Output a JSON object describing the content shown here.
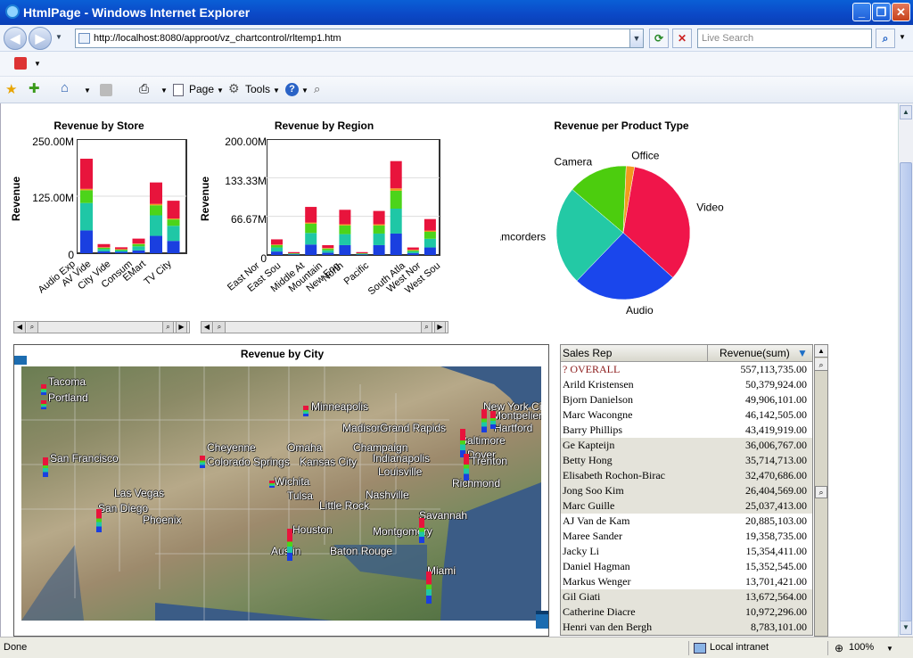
{
  "window": {
    "title": "HtmlPage - Windows Internet Explorer"
  },
  "nav": {
    "address": "http://localhost:8080/approot/vz_chartcontrol/rltemp1.htm",
    "search_placeholder": "Live Search"
  },
  "toolbar": {
    "page_label": "Page",
    "tools_label": "Tools"
  },
  "status": {
    "left": "Done",
    "zone": "Local intranet",
    "zoom": "100%"
  },
  "charts": {
    "store": {
      "title": "Revenue by Store",
      "ylabel": "Revenue",
      "ticks": [
        "250.00M",
        "125.00M",
        "0"
      ]
    },
    "region": {
      "title": "Revenue by Region",
      "ylabel": "Revenue",
      "ticks": [
        "200.00M",
        "133.33M",
        "66.67M",
        "0"
      ]
    },
    "product": {
      "title": "Revenue per Product Type"
    },
    "city": {
      "title": "Revenue by City"
    }
  },
  "chart_data": [
    {
      "type": "bar",
      "title": "Revenue by Store",
      "ylabel": "Revenue",
      "ylim": [
        0,
        250000000
      ],
      "categories": [
        "Audio Exp",
        "AV Vide",
        "City Vide",
        "Consum",
        "EMart",
        "TV City"
      ],
      "series": [
        {
          "color": "#1a3fe0",
          "values": [
            50,
            4,
            3,
            6,
            38,
            27
          ]
        },
        {
          "color": "#1fc7a6",
          "values": [
            60,
            5,
            3,
            9,
            45,
            33
          ]
        },
        {
          "color": "#4cd41a",
          "values": [
            28,
            3,
            2,
            5,
            22,
            14
          ]
        },
        {
          "color": "#f29a1e",
          "values": [
            3,
            1,
            1,
            1,
            3,
            2
          ]
        },
        {
          "color": "#e8143c",
          "values": [
            66,
            7,
            4,
            11,
            47,
            39
          ]
        }
      ]
    },
    {
      "type": "bar",
      "title": "Revenue by Region",
      "ylabel": "Revenue",
      "ylim": [
        0,
        200000000
      ],
      "categories": [
        "East Nor",
        "East Sou",
        "Middle At",
        "Mountain",
        "New Eng",
        "North",
        "Pacific",
        "South Atla",
        "West Nor",
        "West Sou"
      ],
      "series": [
        {
          "color": "#1a3fe0",
          "values": [
            6,
            1,
            18,
            4,
            17,
            1,
            17,
            37,
            3,
            13
          ]
        },
        {
          "color": "#1fc7a6",
          "values": [
            7,
            1,
            20,
            4,
            19,
            1,
            20,
            43,
            3,
            15
          ]
        },
        {
          "color": "#4cd41a",
          "values": [
            4,
            1,
            16,
            3,
            15,
            1,
            14,
            31,
            2,
            12
          ]
        },
        {
          "color": "#f29a1e",
          "values": [
            1,
            0,
            2,
            1,
            2,
            0,
            2,
            4,
            1,
            2
          ]
        },
        {
          "color": "#e8143c",
          "values": [
            9,
            2,
            27,
            5,
            25,
            2,
            23,
            47,
            4,
            20
          ]
        }
      ]
    },
    {
      "type": "pie",
      "title": "Revenue per Product Type",
      "categories": [
        "Video",
        "Audio",
        "Camcorders",
        "Camera",
        "Office"
      ],
      "values": [
        34,
        25.5,
        24,
        14.5,
        2
      ],
      "colors": [
        "#f0154a",
        "#1a46ec",
        "#23c9a5",
        "#4ccd0e",
        "#f29a1e"
      ]
    }
  ],
  "map": {
    "cities": [
      {
        "name": "Tacoma"
      },
      {
        "name": "Portland"
      },
      {
        "name": "Minneapolis"
      },
      {
        "name": "New York City"
      },
      {
        "name": "Montpelier"
      },
      {
        "name": "Hartford"
      },
      {
        "name": "Madison"
      },
      {
        "name": "Grand Rapids"
      },
      {
        "name": "Baltimore"
      },
      {
        "name": "Cheyenne"
      },
      {
        "name": "Omaha"
      },
      {
        "name": "Champaign"
      },
      {
        "name": "Dover"
      },
      {
        "name": "Trenton"
      },
      {
        "name": "San Francisco"
      },
      {
        "name": "Colorado Springs"
      },
      {
        "name": "Kansas City"
      },
      {
        "name": "Indianapolis"
      },
      {
        "name": "Louisville"
      },
      {
        "name": "Wichita"
      },
      {
        "name": "Richmond"
      },
      {
        "name": "Las Vegas"
      },
      {
        "name": "Tulsa"
      },
      {
        "name": "Nashville"
      },
      {
        "name": "San Diego"
      },
      {
        "name": "Little Rock"
      },
      {
        "name": "Phoenix"
      },
      {
        "name": "Savannah"
      },
      {
        "name": "Houston"
      },
      {
        "name": "Montgomery"
      },
      {
        "name": "Austin"
      },
      {
        "name": "Baton Rouge"
      },
      {
        "name": "Miami"
      }
    ]
  },
  "table": {
    "headers": [
      "Sales Rep",
      "Revenue(sum)"
    ],
    "rows": [
      {
        "name": "? OVERALL",
        "value": "557,113,735.00"
      },
      {
        "name": "Arild Kristensen",
        "value": "50,379,924.00"
      },
      {
        "name": "Bjorn Danielson",
        "value": "49,906,101.00"
      },
      {
        "name": "Marc Wacongne",
        "value": "46,142,505.00"
      },
      {
        "name": "Barry Phillips",
        "value": "43,419,919.00"
      },
      {
        "name": "Ge Kapteijn",
        "value": "36,006,767.00"
      },
      {
        "name": "Betty Hong",
        "value": "35,714,713.00"
      },
      {
        "name": "Elisabeth Rochon-Birac",
        "value": "32,470,686.00"
      },
      {
        "name": "Jong Soo Kim",
        "value": "26,404,569.00"
      },
      {
        "name": "Marc Guille",
        "value": "25,037,413.00"
      },
      {
        "name": "AJ Van de Kam",
        "value": "20,885,103.00"
      },
      {
        "name": "Maree Sander",
        "value": "19,358,735.00"
      },
      {
        "name": "Jacky Li",
        "value": "15,354,411.00"
      },
      {
        "name": "Daniel Hagman",
        "value": "15,352,545.00"
      },
      {
        "name": "Markus Wenger",
        "value": "13,701,421.00"
      },
      {
        "name": "Gil Giati",
        "value": "13,672,564.00"
      },
      {
        "name": "Catherine Diacre",
        "value": "10,972,296.00"
      },
      {
        "name": "Henri van den Bergh",
        "value": "8,783,101.00"
      }
    ]
  }
}
